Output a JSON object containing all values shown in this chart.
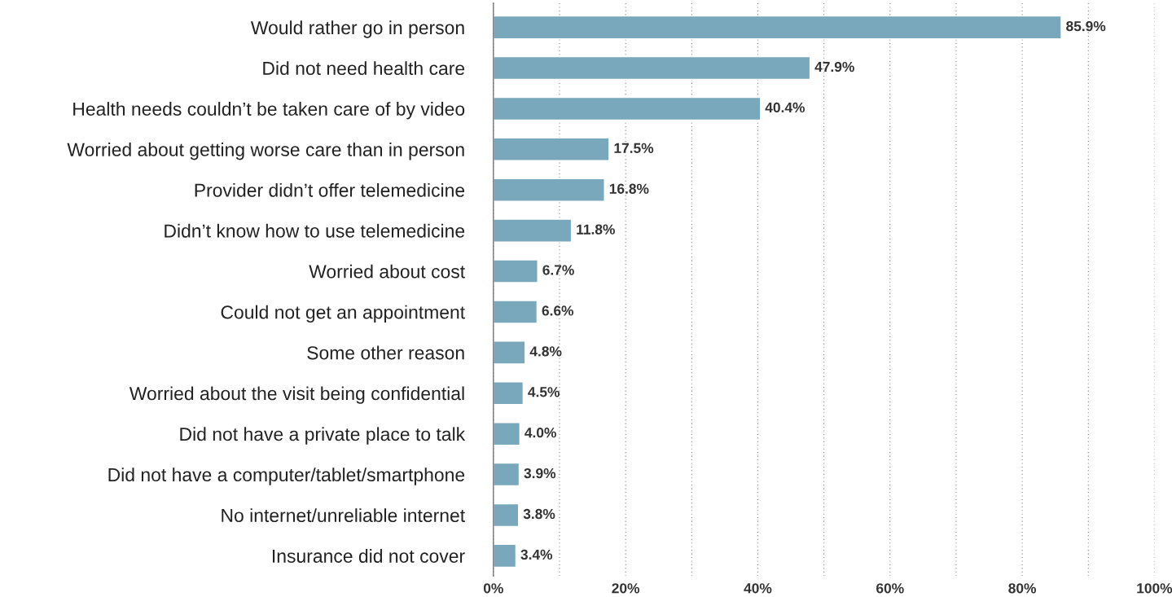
{
  "chart_data": {
    "type": "bar",
    "orientation": "horizontal",
    "categories": [
      "Would rather go in person",
      "Did not need health care",
      "Health needs couldn’t be taken care of by video",
      "Worried about getting worse care than in person",
      "Provider didn’t offer telemedicine",
      "Didn’t know how to use telemedicine",
      "Worried about cost",
      "Could not get an appointment",
      "Some other reason",
      "Worried about the visit being confidential",
      "Did not have a private place to talk",
      "Did not have a computer/tablet/smartphone",
      "No internet/unreliable internet",
      "Insurance did not cover"
    ],
    "values": [
      85.9,
      47.9,
      40.4,
      17.5,
      16.8,
      11.8,
      6.7,
      6.6,
      4.8,
      4.5,
      4.0,
      3.9,
      3.8,
      3.4
    ],
    "value_labels": [
      "85.9%",
      "47.9%",
      "40.4%",
      "17.5%",
      "16.8%",
      "11.8%",
      "6.7%",
      "6.6%",
      "4.8%",
      "4.5%",
      "4.0%",
      "3.9%",
      "3.8%",
      "3.4%"
    ],
    "color": "#79a7bb",
    "xlim": [
      0,
      100
    ],
    "xticks": [
      {
        "value": 0,
        "label": "0%"
      },
      {
        "value": 10,
        "label": null
      },
      {
        "value": 20,
        "label": "20%"
      },
      {
        "value": 30,
        "label": null
      },
      {
        "value": 40,
        "label": "40%"
      },
      {
        "value": 50,
        "label": null
      },
      {
        "value": 60,
        "label": "60%"
      },
      {
        "value": 70,
        "label": null
      },
      {
        "value": 80,
        "label": "80%"
      },
      {
        "value": 90,
        "label": null
      },
      {
        "value": 100,
        "label": "100%"
      }
    ],
    "grid": "x",
    "legend": false
  }
}
